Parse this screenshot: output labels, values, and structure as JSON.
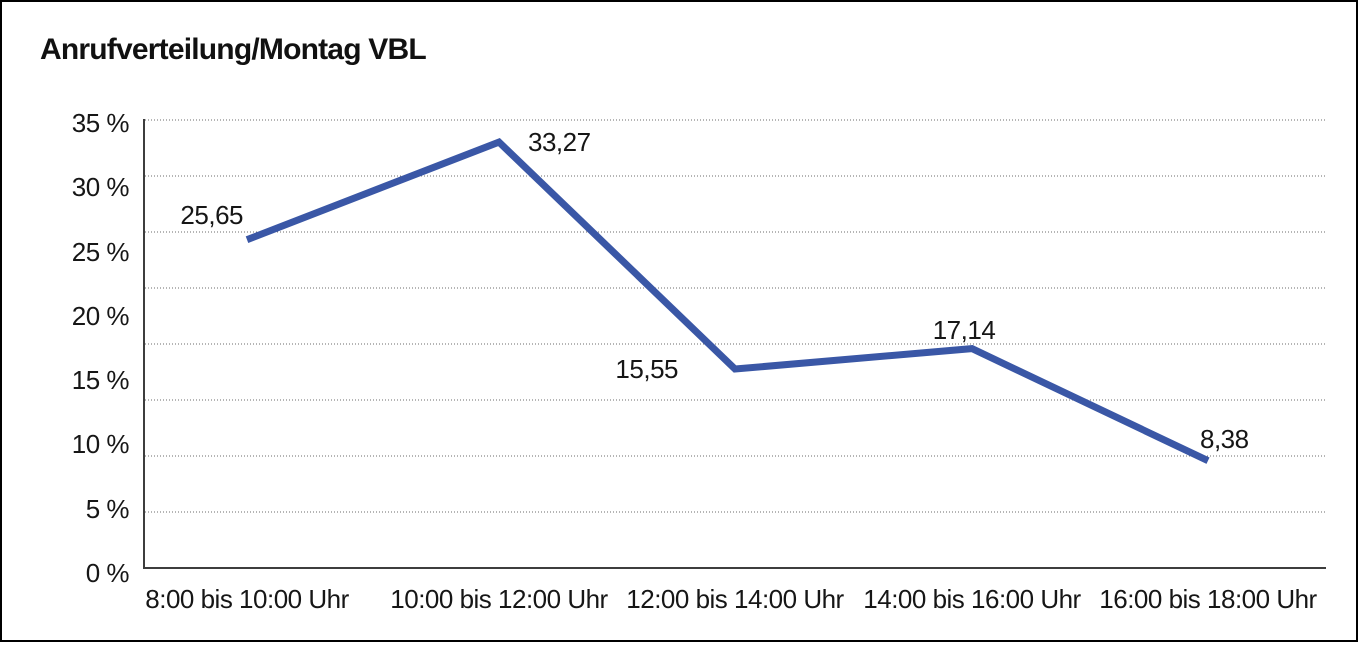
{
  "title": "Anrufverteilung/Montag VBL",
  "chart_data": {
    "type": "line",
    "title": "Anrufverteilung/Montag VBL",
    "categories": [
      "8:00 bis 10:00 Uhr",
      "10:00 bis 12:00 Uhr",
      "12:00 bis 14:00 Uhr",
      "14:00 bis 16:00 Uhr",
      "16:00 bis 18:00 Uhr"
    ],
    "values": [
      25.65,
      33.27,
      15.55,
      17.14,
      8.38
    ],
    "value_labels": [
      "25,65",
      "33,27",
      "15,55",
      "17,14",
      "8,38"
    ],
    "y_tick_labels": [
      "35 %",
      "30 %",
      "25 %",
      "20 %",
      "15 %",
      "10 %",
      "5 %",
      "0 %"
    ],
    "ylim": [
      0,
      35
    ],
    "xlabel": "",
    "ylabel": "",
    "grid": "horizontal-dotted",
    "legend": "none",
    "colors": {
      "line": "#3A57A6",
      "axis": "#3d3d3d",
      "gridline": "#6b6b6b",
      "text": "#161616",
      "frame": "#000000"
    }
  }
}
